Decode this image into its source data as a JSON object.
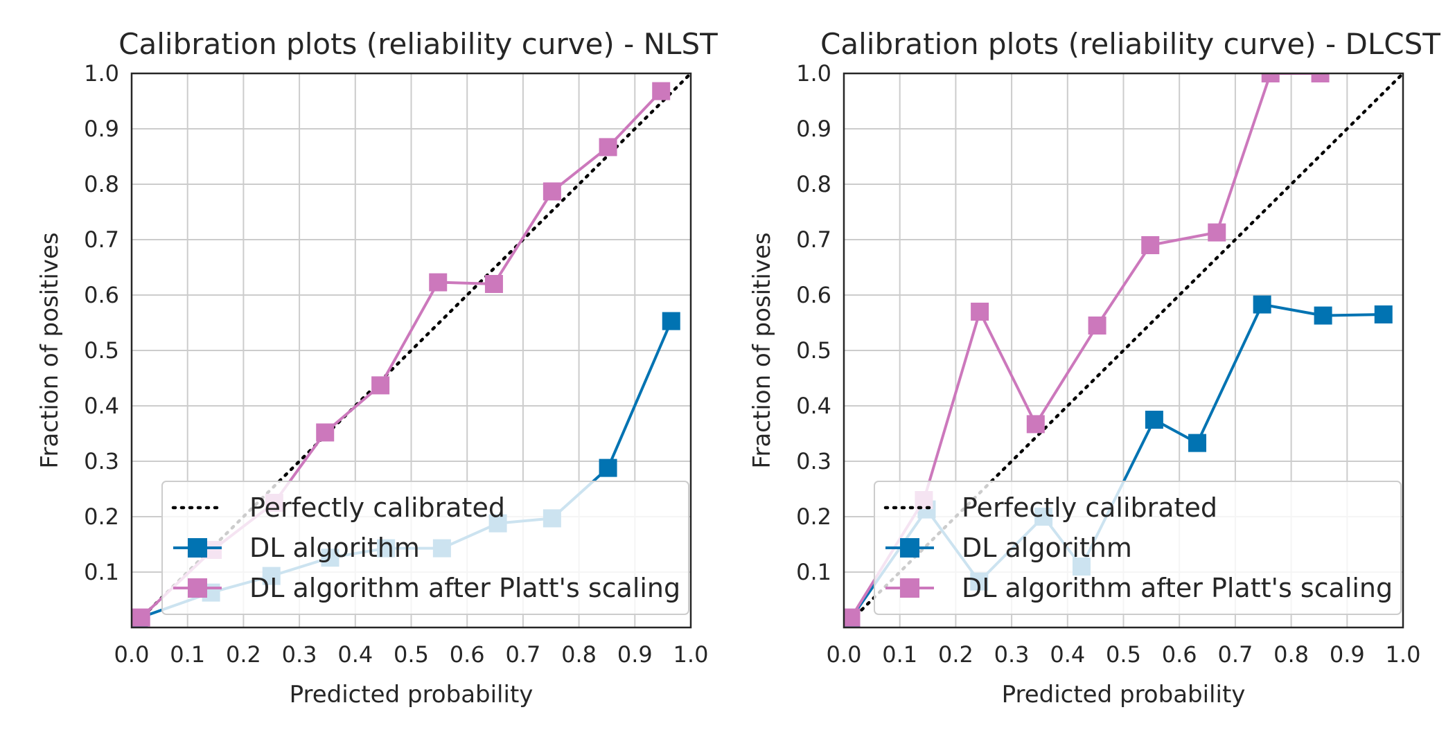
{
  "colors": {
    "perfect": "#000000",
    "dl": "#0173b2",
    "platt": "#cc78bc",
    "grid": "#cccccc",
    "frame": "#262626"
  },
  "chart_data": [
    {
      "type": "line",
      "title": "Calibration plots (reliability curve) - NLST",
      "xlabel": "Predicted probability",
      "ylabel": "Fraction of positives",
      "xlim": [
        0.0,
        1.0
      ],
      "ylim": [
        0.0,
        1.0
      ],
      "xticks": [
        "0.0",
        "0.1",
        "0.2",
        "0.3",
        "0.4",
        "0.5",
        "0.6",
        "0.7",
        "0.8",
        "0.9",
        "1.0"
      ],
      "yticks": [
        "0.1",
        "0.2",
        "0.3",
        "0.4",
        "0.5",
        "0.6",
        "0.7",
        "0.8",
        "0.9",
        "1.0"
      ],
      "grid": true,
      "legend_position": "lower-right",
      "series": [
        {
          "name": "Perfectly calibrated",
          "style": "dotted",
          "x": [
            0.0,
            1.0
          ],
          "y": [
            0.0,
            1.0
          ]
        },
        {
          "name": "DL algorithm",
          "x": [
            0.013,
            0.142,
            0.25,
            0.355,
            0.455,
            0.555,
            0.655,
            0.752,
            0.852,
            0.965
          ],
          "y": [
            0.017,
            0.063,
            0.093,
            0.126,
            0.143,
            0.143,
            0.188,
            0.197,
            0.288,
            0.553
          ]
        },
        {
          "name": "DL algorithm after Platt's scaling",
          "x": [
            0.017,
            0.145,
            0.255,
            0.346,
            0.445,
            0.548,
            0.648,
            0.752,
            0.852,
            0.947
          ],
          "y": [
            0.018,
            0.14,
            0.225,
            0.352,
            0.437,
            0.623,
            0.62,
            0.787,
            0.867,
            0.968
          ]
        }
      ]
    },
    {
      "type": "line",
      "title": "Calibration plots (reliability curve) - DLCST",
      "xlabel": "Predicted probability",
      "ylabel": "Fraction of positives",
      "xlim": [
        0.0,
        1.0
      ],
      "ylim": [
        0.0,
        1.0
      ],
      "xticks": [
        "0.0",
        "0.1",
        "0.2",
        "0.3",
        "0.4",
        "0.5",
        "0.6",
        "0.7",
        "0.8",
        "0.9",
        "1.0"
      ],
      "yticks": [
        "0.1",
        "0.2",
        "0.3",
        "0.4",
        "0.5",
        "0.6",
        "0.7",
        "0.8",
        "0.9",
        "1.0"
      ],
      "grid": true,
      "legend_position": "lower-right",
      "series": [
        {
          "name": "Perfectly calibrated",
          "style": "dotted",
          "x": [
            0.0,
            1.0
          ],
          "y": [
            0.0,
            1.0
          ]
        },
        {
          "name": "DL algorithm",
          "x": [
            0.013,
            0.148,
            0.242,
            0.357,
            0.425,
            0.555,
            0.632,
            0.748,
            0.857,
            0.965
          ],
          "y": [
            0.017,
            0.213,
            0.083,
            0.2,
            0.11,
            0.375,
            0.333,
            0.583,
            0.563,
            0.565
          ]
        },
        {
          "name": "DL algorithm after Platt's scaling",
          "x": [
            0.013,
            0.143,
            0.243,
            0.343,
            0.453,
            0.548,
            0.667,
            0.763,
            0.852
          ],
          "y": [
            0.018,
            0.23,
            0.57,
            0.367,
            0.545,
            0.69,
            0.713,
            1.0,
            1.0
          ]
        }
      ]
    }
  ]
}
